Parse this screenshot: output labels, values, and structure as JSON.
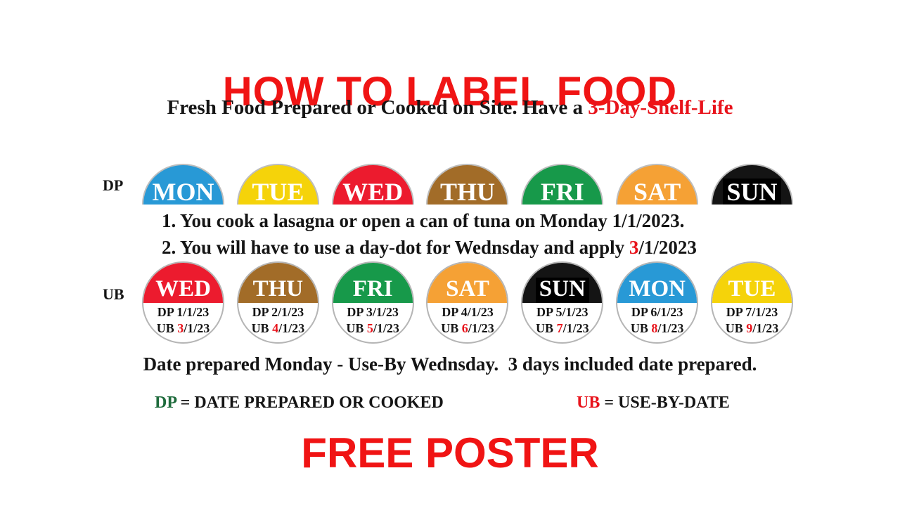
{
  "colors": {
    "heading_red": "#f01414",
    "accent_red": "#e8131b",
    "dp_green": "#1e6b3c",
    "dot_border_gray": "#b5b5b5"
  },
  "title": "HOW TO LABEL FOOD",
  "subtitle": {
    "prefix": "Fresh Food Prepared or Cooked on Site. Have a ",
    "highlight": "3-Day-Shelf-Life"
  },
  "dp_row": {
    "label": "DP",
    "dots": [
      {
        "day": "MON",
        "color": "#2899d6"
      },
      {
        "day": "TUE",
        "color": "#f5d30a"
      },
      {
        "day": "WED",
        "color": "#ec1b2e"
      },
      {
        "day": "THU",
        "color": "#a26c28"
      },
      {
        "day": "FRI",
        "color": "#17994a"
      },
      {
        "day": "SAT",
        "color": "#f5a135"
      },
      {
        "day": "SUN",
        "color": "#141414",
        "label_bg": "#000000"
      }
    ]
  },
  "instructions": {
    "line1": "1. You cook a lasagna or open a can of tuna on Monday 1/1/2023.",
    "line2_prefix": "2. You will have to use a day-dot for Wednsday and apply ",
    "line2_red": "3",
    "line2_suffix": "/1/2023"
  },
  "ub_row": {
    "label": "UB",
    "dots": [
      {
        "day": "WED",
        "color": "#ec1b2e",
        "dp_line": "DP 1/1/23",
        "ub_prefix": "UB ",
        "ub_red": "3",
        "ub_suffix": "/1/23"
      },
      {
        "day": "THU",
        "color": "#a26c28",
        "dp_line": "DP 2/1/23",
        "ub_prefix": "UB ",
        "ub_red": "4",
        "ub_suffix": "/1/23"
      },
      {
        "day": "FRI",
        "color": "#17994a",
        "dp_line": "DP 3/1/23",
        "ub_prefix": "UB ",
        "ub_red": "5",
        "ub_suffix": "/1/23"
      },
      {
        "day": "SAT",
        "color": "#f5a135",
        "dp_line": "DP 4/1/23",
        "ub_prefix": "UB ",
        "ub_red": "6",
        "ub_suffix": "/1/23"
      },
      {
        "day": "SUN",
        "color": "#141414",
        "label_bg": "#000000",
        "dp_line": "DP 5/1/23",
        "ub_prefix": "UB ",
        "ub_red": "7",
        "ub_suffix": "/1/23"
      },
      {
        "day": "MON",
        "color": "#2899d6",
        "dp_line": "DP 6/1/23",
        "ub_prefix": "UB ",
        "ub_red": "8",
        "ub_suffix": "/1/23"
      },
      {
        "day": "TUE",
        "color": "#f5d30a",
        "dp_line": "DP 7/1/23",
        "ub_prefix": "UB ",
        "ub_red": "9",
        "ub_suffix": "/1/23"
      }
    ]
  },
  "summary": "Date prepared Monday - Use-By Wednsday.  3 days included date prepared.",
  "legend": {
    "dp_key": "DP",
    "dp_text": " = DATE PREPARED OR COOKED",
    "ub_key": "UB",
    "ub_text": " = USE-BY-DATE"
  },
  "footer": "FREE POSTER"
}
